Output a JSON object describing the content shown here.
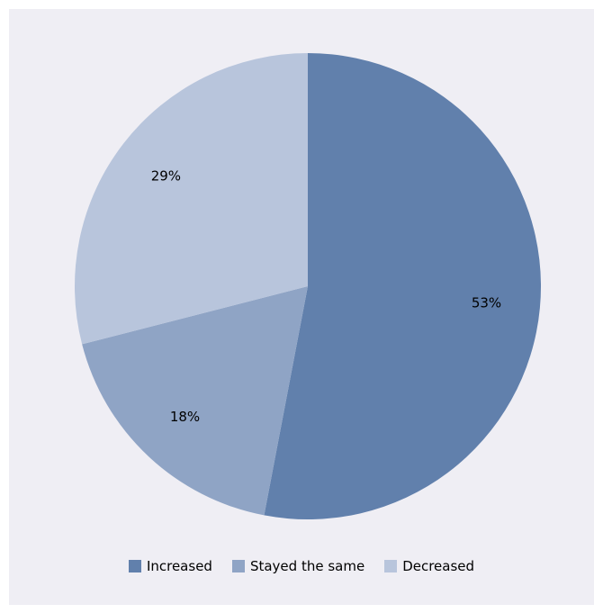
{
  "chart_data": {
    "type": "pie",
    "categories": [
      "Increased",
      "Stayed the same",
      "Decreased"
    ],
    "values": [
      53,
      18,
      29
    ],
    "labels": [
      "53%",
      "18%",
      "29%"
    ],
    "colors": [
      "#6180ac",
      "#8fa4c5",
      "#b8c5dc"
    ],
    "legend_position": "bottom",
    "title": ""
  }
}
